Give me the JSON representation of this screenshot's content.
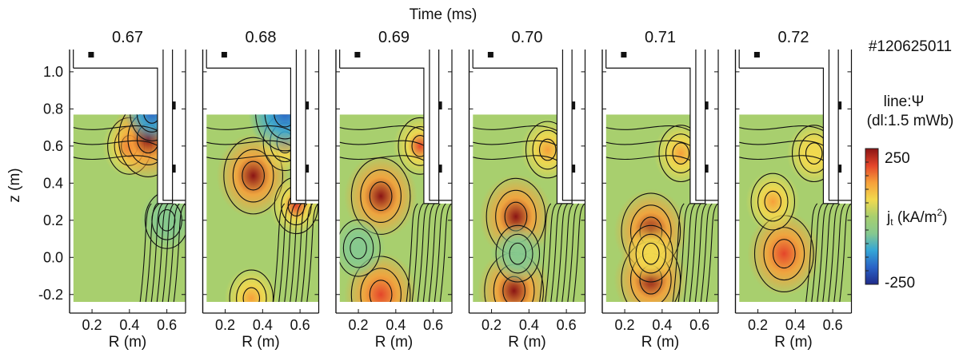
{
  "chart_data": {
    "type": "heatmap",
    "title": "Time (ms)",
    "shot_label": "#120625011",
    "contour_note_line1": "line:Ψ",
    "contour_note_line2": "(dl:1.5 mWb)",
    "xlabel": "R (m)",
    "ylabel": "z (m)",
    "xlim": [
      0.08,
      0.7
    ],
    "ylim": [
      -0.3,
      1.12
    ],
    "x_ticks": [
      "0.2",
      "0.4",
      "0.6"
    ],
    "x_tick_values": [
      0.2,
      0.4,
      0.6
    ],
    "y_ticks": [
      "-0.2",
      "0.0",
      "0.2",
      "0.4",
      "0.6",
      "0.8",
      "1.0"
    ],
    "y_tick_values": [
      -0.2,
      0.0,
      0.2,
      0.4,
      0.6,
      0.8,
      1.0
    ],
    "colorbar": {
      "label_main": "j",
      "label_sub": "t",
      "label_unit": " (kA/m",
      "label_sup": "2",
      "label_end": ")",
      "max": 250,
      "min": -250,
      "max_label": "250",
      "min_label": "-250"
    },
    "colormap": [
      "#1f2a8a",
      "#2a63c6",
      "#35a6d6",
      "#86c98f",
      "#a8cf6e",
      "#f2d94e",
      "#f6a03a",
      "#e4452a",
      "#8a1414"
    ],
    "background_jt": 0,
    "panels": [
      {
        "time": "0.67",
        "blobs": [
          {
            "r": 0.4,
            "z": 0.6,
            "jt": 170
          },
          {
            "r": 0.5,
            "z": 0.64,
            "jt": 250
          },
          {
            "r": 0.52,
            "z": 0.78,
            "jt": -180
          },
          {
            "r": 0.6,
            "z": 0.2,
            "jt": -60
          }
        ]
      },
      {
        "time": "0.68",
        "blobs": [
          {
            "r": 0.35,
            "z": 0.44,
            "jt": 240
          },
          {
            "r": 0.52,
            "z": 0.62,
            "jt": 120
          },
          {
            "r": 0.58,
            "z": 0.28,
            "jt": 160
          },
          {
            "r": 0.52,
            "z": 0.78,
            "jt": -200
          },
          {
            "r": 0.34,
            "z": -0.22,
            "jt": 150
          }
        ]
      },
      {
        "time": "0.69",
        "blobs": [
          {
            "r": 0.32,
            "z": 0.33,
            "jt": 250
          },
          {
            "r": 0.53,
            "z": 0.6,
            "jt": 160
          },
          {
            "r": 0.32,
            "z": -0.2,
            "jt": 200
          },
          {
            "r": 0.2,
            "z": 0.05,
            "jt": -60
          }
        ]
      },
      {
        "time": "0.70",
        "blobs": [
          {
            "r": 0.33,
            "z": 0.22,
            "jt": 250
          },
          {
            "r": 0.32,
            "z": -0.18,
            "jt": 250
          },
          {
            "r": 0.5,
            "z": 0.58,
            "jt": 140
          },
          {
            "r": 0.34,
            "z": 0.02,
            "jt": -60
          }
        ]
      },
      {
        "time": "0.71",
        "blobs": [
          {
            "r": 0.34,
            "z": 0.14,
            "jt": 240
          },
          {
            "r": 0.34,
            "z": -0.12,
            "jt": 250
          },
          {
            "r": 0.5,
            "z": 0.56,
            "jt": 100
          },
          {
            "r": 0.34,
            "z": 0.02,
            "jt": 80
          }
        ]
      },
      {
        "time": "0.72",
        "blobs": [
          {
            "r": 0.34,
            "z": 0.02,
            "jt": 200
          },
          {
            "r": 0.28,
            "z": 0.3,
            "jt": 130
          },
          {
            "r": 0.5,
            "z": 0.56,
            "jt": 60
          }
        ]
      }
    ]
  }
}
